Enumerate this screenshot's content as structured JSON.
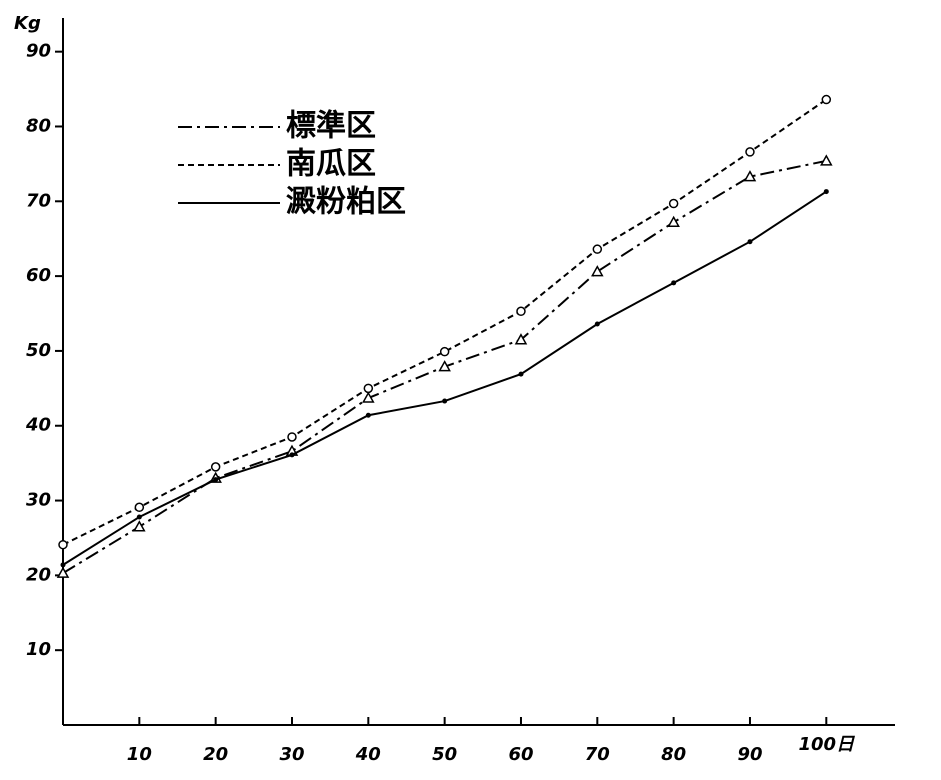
{
  "chart_data": {
    "type": "line",
    "y_label": "Kg",
    "x": [
      0,
      10,
      20,
      30,
      40,
      50,
      60,
      70,
      80,
      90,
      100
    ],
    "series": [
      {
        "name": "標準区",
        "color": "#000000",
        "dash": "dashdot",
        "marker": "triangle",
        "values": [
          20.3,
          26.5,
          33,
          36.6,
          43.7,
          47.9,
          51.5,
          60.6,
          67.2,
          73.3,
          75.4
        ]
      },
      {
        "name": "南瓜区",
        "color": "#000000",
        "dash": "dashed",
        "marker": "circle",
        "values": [
          24.1,
          29.1,
          34.5,
          38.5,
          45,
          49.9,
          55.3,
          63.6,
          69.7,
          76.6,
          83.6
        ]
      },
      {
        "name": "澱粉粕区",
        "color": "#000000",
        "dash": "solid",
        "marker": "dot",
        "values": [
          21.4,
          27.8,
          32.8,
          36.1,
          41.4,
          43.3,
          46.9,
          53.6,
          59.1,
          64.6,
          71.3
        ]
      }
    ],
    "xlim": [
      0,
      109
    ],
    "ylim": [
      0,
      94.5
    ],
    "xticks": [
      10,
      20,
      30,
      40,
      50,
      60,
      70,
      80,
      90,
      {
        "value": 100,
        "label": "100日"
      }
    ],
    "yticks": [
      10,
      20,
      30,
      40,
      50,
      60,
      70,
      80,
      90
    ],
    "legend": "upper-left"
  }
}
